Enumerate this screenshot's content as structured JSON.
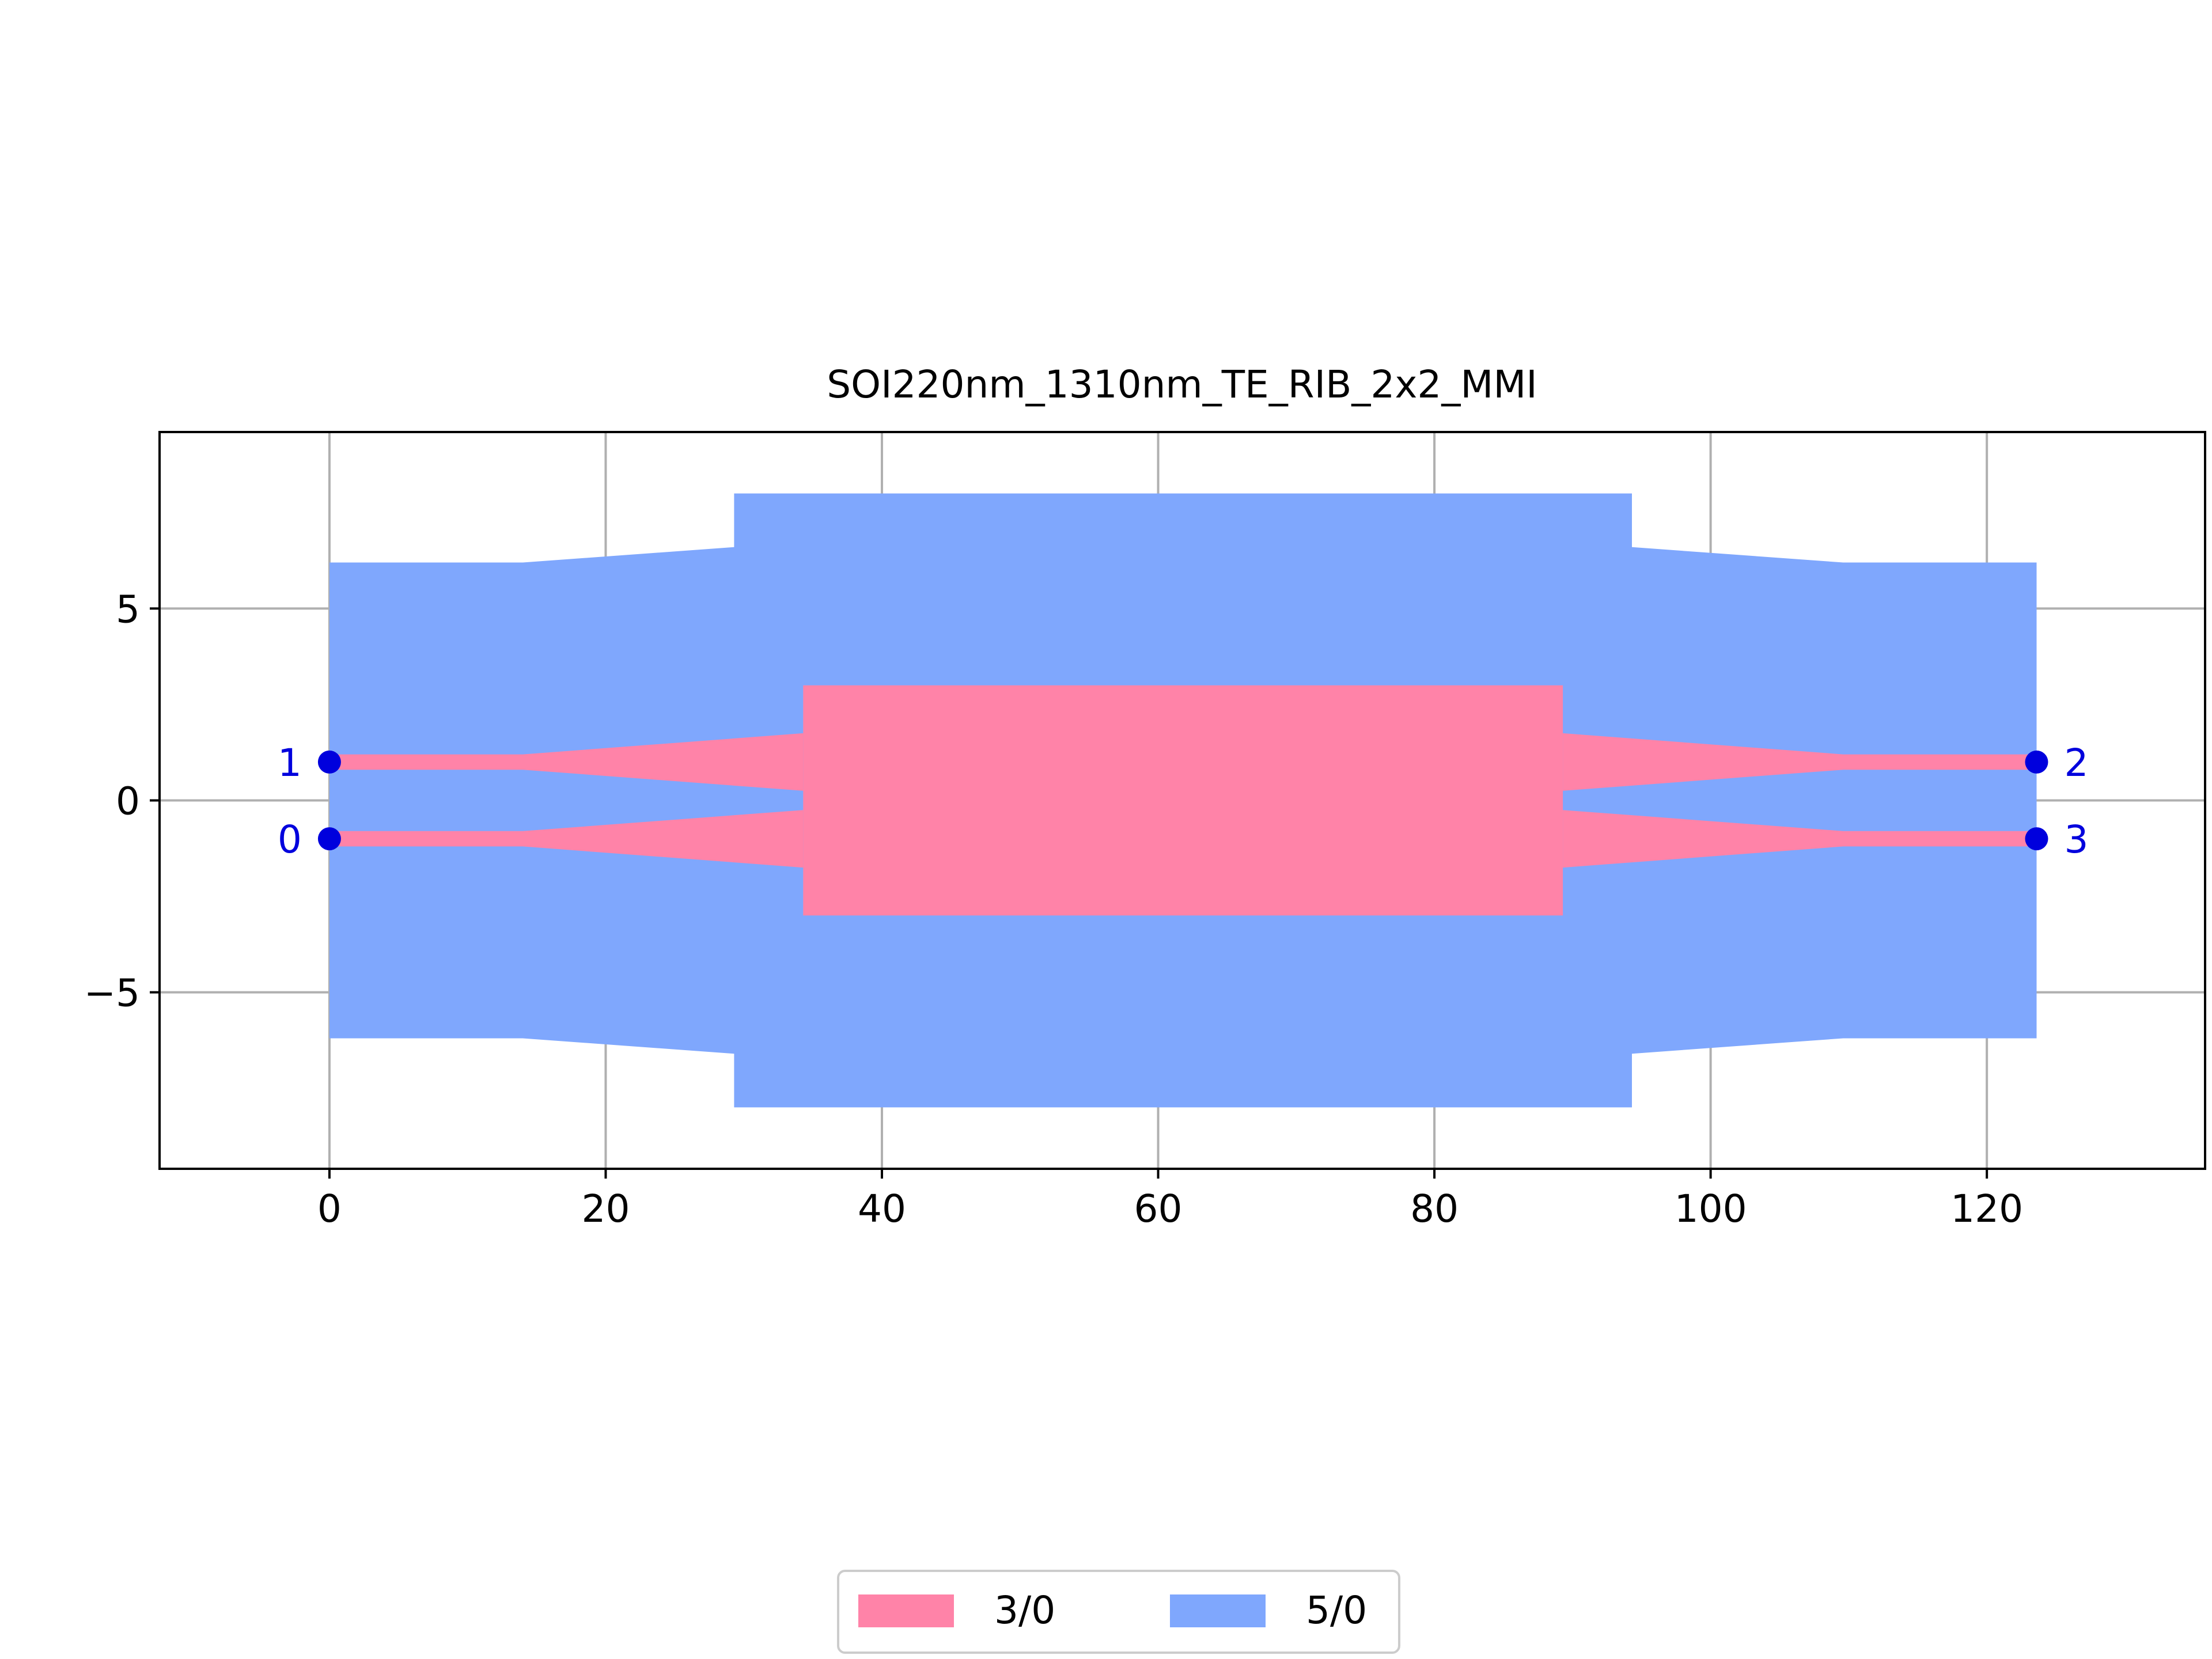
{
  "chart_data": {
    "type": "layout",
    "title": "SOI220nm_1310nm_TE_RIB_2x2_MMI",
    "xlabel": "",
    "ylabel": "",
    "xlim": [
      -12.3,
      135.8
    ],
    "ylim": [
      -9.6,
      9.6
    ],
    "x_ticks": [
      0,
      20,
      40,
      60,
      80,
      100,
      120
    ],
    "y_ticks": [
      -5,
      0,
      5
    ],
    "x_tick_labels": [
      "0",
      "20",
      "40",
      "60",
      "80",
      "100",
      "120"
    ],
    "y_tick_labels": [
      "−5",
      "0",
      "5"
    ],
    "grid": true,
    "legend_position": "bottom-center",
    "layers": [
      {
        "name": "5/0",
        "color": "#7fa7fd",
        "polygons": [
          [
            [
              0,
              6.2
            ],
            [
              14,
              6.2
            ],
            [
              29.3,
              6.6
            ],
            [
              29.3,
              8.0
            ],
            [
              94.3,
              8.0
            ],
            [
              94.3,
              6.6
            ],
            [
              109.6,
              6.2
            ],
            [
              123.6,
              6.2
            ],
            [
              123.6,
              -6.2
            ],
            [
              109.6,
              -6.2
            ],
            [
              94.3,
              -6.6
            ],
            [
              94.3,
              -8.0
            ],
            [
              29.3,
              -8.0
            ],
            [
              29.3,
              -6.6
            ],
            [
              14,
              -6.2
            ],
            [
              0,
              -6.2
            ]
          ]
        ]
      },
      {
        "name": "3/0",
        "color": "#ff83a8",
        "polygons": [
          [
            [
              34.3,
              3.0
            ],
            [
              89.3,
              3.0
            ],
            [
              89.3,
              -3.0
            ],
            [
              34.3,
              -3.0
            ]
          ],
          [
            [
              0,
              1.2
            ],
            [
              14,
              1.2
            ],
            [
              34.3,
              1.75
            ],
            [
              34.3,
              0.25
            ],
            [
              14,
              0.8
            ],
            [
              0,
              0.8
            ]
          ],
          [
            [
              0,
              -0.8
            ],
            [
              14,
              -0.8
            ],
            [
              34.3,
              -0.25
            ],
            [
              34.3,
              -1.75
            ],
            [
              14,
              -1.2
            ],
            [
              0,
              -1.2
            ]
          ],
          [
            [
              89.3,
              1.75
            ],
            [
              109.6,
              1.2
            ],
            [
              123.6,
              1.2
            ],
            [
              123.6,
              0.8
            ],
            [
              109.6,
              0.8
            ],
            [
              89.3,
              0.25
            ]
          ],
          [
            [
              89.3,
              -0.25
            ],
            [
              109.6,
              -0.8
            ],
            [
              123.6,
              -0.8
            ],
            [
              123.6,
              -1.2
            ],
            [
              109.6,
              -1.2
            ],
            [
              89.3,
              -1.75
            ]
          ]
        ]
      }
    ],
    "ports": [
      {
        "label": "0",
        "x": 0,
        "y": -1.0,
        "side": "left"
      },
      {
        "label": "1",
        "x": 0,
        "y": 1.0,
        "side": "left"
      },
      {
        "label": "2",
        "x": 123.6,
        "y": 1.0,
        "side": "right"
      },
      {
        "label": "3",
        "x": 123.6,
        "y": -1.0,
        "side": "right"
      }
    ],
    "port_color": "#0000dd",
    "legend": [
      {
        "label": "3/0",
        "color": "#ff83a8"
      },
      {
        "label": "5/0",
        "color": "#7fa7fd"
      }
    ]
  }
}
